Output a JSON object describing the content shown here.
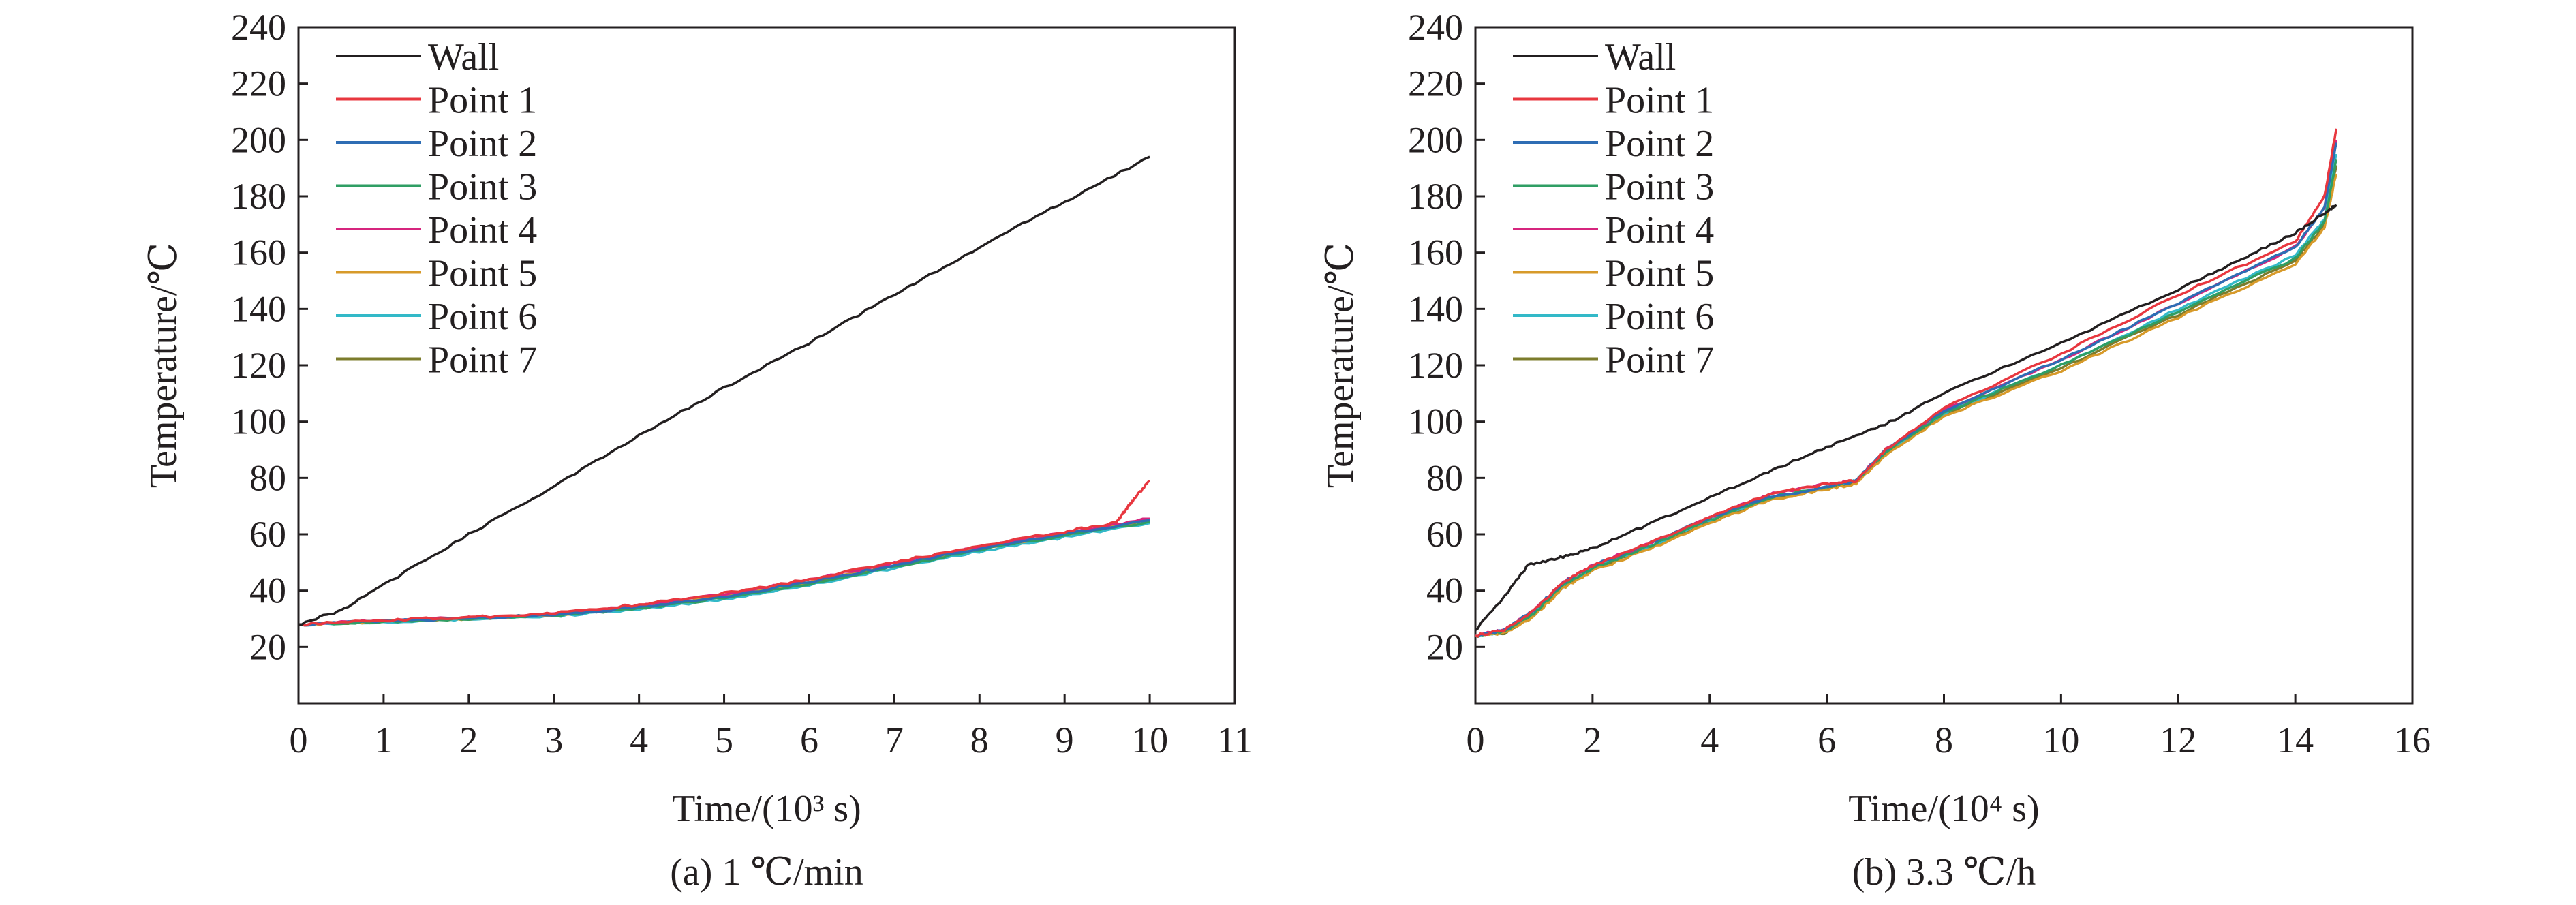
{
  "figure": {
    "legend_entries": [
      "Wall",
      "Point 1",
      "Point 2",
      "Point 3",
      "Point 4",
      "Point 5",
      "Point 6",
      "Point 7"
    ],
    "colors": {
      "Wall": "#231f20",
      "Point 1": "#e8373f",
      "Point 2": "#2e6db4",
      "Point 3": "#2f9e64",
      "Point 4": "#d6257e",
      "Point 5": "#d79a2a",
      "Point 6": "#33b9c8",
      "Point 7": "#7c7c2c"
    }
  },
  "chart_data": [
    {
      "type": "line",
      "caption": "(a) 1 ℃/min",
      "xlabel": "Time/(10³ s)",
      "ylabel": "Temperature/℃",
      "xlim": [
        0,
        11
      ],
      "ylim": [
        0,
        240
      ],
      "x_ticks": [
        "0",
        "1",
        "2",
        "3",
        "4",
        "5",
        "6",
        "7",
        "8",
        "9",
        "10",
        "11"
      ],
      "y_ticks": [
        "20",
        "40",
        "60",
        "80",
        "100",
        "120",
        "140",
        "160",
        "180",
        "200",
        "220",
        "240"
      ],
      "grid": false,
      "legend_position": "top-left",
      "series": [
        {
          "name": "Wall",
          "x": [
            0,
            0.5,
            1,
            2,
            3,
            4,
            5,
            6,
            7,
            8,
            9,
            10
          ],
          "y": [
            28,
            33,
            42,
            60,
            77,
            95,
            112,
            128,
            145,
            162,
            178,
            194
          ]
        },
        {
          "name": "Point 1",
          "x": [
            0,
            1,
            2,
            3,
            4,
            5,
            6,
            7,
            8,
            9,
            9.6,
            9.7,
            9.8,
            10
          ],
          "y": [
            28,
            29.5,
            30.5,
            32,
            35,
            39,
            44,
            50,
            56,
            61,
            64,
            68,
            72,
            79
          ]
        },
        {
          "name": "Point 2",
          "x": [
            0,
            1,
            2,
            3,
            4,
            5,
            6,
            7,
            8,
            9,
            10
          ],
          "y": [
            28,
            29.2,
            30.2,
            31.5,
            34,
            38,
            43,
            49,
            55,
            60,
            65
          ]
        },
        {
          "name": "Point 3",
          "x": [
            0,
            1,
            2,
            3,
            4,
            5,
            6,
            7,
            8,
            9,
            10
          ],
          "y": [
            28,
            29,
            30,
            31.2,
            33.5,
            37.5,
            42.5,
            48.5,
            54.5,
            59.5,
            64.5
          ]
        },
        {
          "name": "Point 4",
          "x": [
            0,
            1,
            2,
            3,
            4,
            5,
            6,
            7,
            8,
            9,
            10
          ],
          "y": [
            28,
            29.4,
            30.4,
            31.8,
            34.6,
            38.6,
            43.8,
            49.8,
            55.6,
            60.6,
            65.5
          ]
        },
        {
          "name": "Point 5",
          "x": [
            0,
            1,
            2,
            3,
            4,
            5,
            6,
            7,
            8,
            9,
            10
          ],
          "y": [
            28,
            29.1,
            30.1,
            31.4,
            34,
            38,
            43,
            49,
            55,
            60,
            65
          ]
        },
        {
          "name": "Point 6",
          "x": [
            0,
            1,
            2,
            3,
            4,
            5,
            6,
            7,
            8,
            9,
            10
          ],
          "y": [
            28,
            29,
            29.9,
            31,
            33.2,
            37,
            42,
            48,
            54,
            59,
            64
          ]
        },
        {
          "name": "Point 7",
          "x": [
            0,
            1,
            2,
            3,
            4,
            5,
            6,
            7,
            8,
            9,
            10
          ],
          "y": [
            28,
            29.1,
            30,
            31.3,
            33.8,
            37.8,
            42.8,
            48.8,
            54.8,
            59.8,
            65
          ]
        }
      ]
    },
    {
      "type": "line",
      "caption": "(b) 3.3 ℃/h",
      "xlabel": "Time/(10⁴ s)",
      "ylabel": "Temperature/℃",
      "xlim": [
        0,
        16
      ],
      "ylim": [
        0,
        240
      ],
      "x_ticks": [
        "0",
        "2",
        "4",
        "6",
        "8",
        "10",
        "12",
        "14",
        "16"
      ],
      "y_ticks": [
        "20",
        "40",
        "60",
        "80",
        "100",
        "120",
        "140",
        "160",
        "180",
        "200",
        "220",
        "240"
      ],
      "grid": false,
      "legend_position": "top-left",
      "series": [
        {
          "name": "Wall",
          "x": [
            0,
            0.5,
            0.9,
            1.5,
            2,
            3,
            4,
            5,
            6,
            7,
            8,
            10,
            12,
            13,
            14,
            14.5,
            14.7
          ],
          "y": [
            26,
            38,
            49,
            52,
            55,
            64,
            73,
            82,
            91,
            99,
            110,
            128,
            147,
            157,
            167,
            174,
            177
          ]
        },
        {
          "name": "Point 1",
          "x": [
            0,
            0.5,
            1,
            1.5,
            2,
            3,
            4,
            5,
            6,
            6.5,
            7,
            8,
            10,
            12,
            14,
            14.5,
            14.7
          ],
          "y": [
            24,
            26,
            33,
            43,
            49,
            57,
            66,
            74,
            78,
            79,
            90,
            105,
            124,
            145,
            164,
            180,
            204
          ]
        },
        {
          "name": "Point 2",
          "x": [
            0,
            0.5,
            1,
            1.5,
            2,
            3,
            4,
            5,
            6,
            6.5,
            7,
            8,
            10,
            12,
            14,
            14.5,
            14.7
          ],
          "y": [
            24,
            26,
            33,
            43,
            49,
            57,
            66,
            73,
            77,
            79,
            90,
            104,
            122,
            142,
            162,
            176,
            199
          ]
        },
        {
          "name": "Point 3",
          "x": [
            0,
            0.5,
            1,
            1.5,
            2,
            3,
            4,
            5,
            6,
            6.5,
            7,
            8,
            10,
            12,
            14,
            14.5,
            14.7
          ],
          "y": [
            24,
            25.5,
            32,
            42,
            48,
            56,
            65,
            73,
            77,
            79,
            89,
            103,
            120,
            139,
            158,
            171,
            193
          ]
        },
        {
          "name": "Point 4",
          "x": [
            0,
            0.5,
            1,
            1.5,
            2,
            3,
            4,
            5,
            6,
            6.5,
            7,
            8,
            10,
            12,
            14,
            14.5,
            14.7
          ],
          "y": [
            24,
            26,
            33,
            43,
            49,
            57,
            66,
            74,
            78,
            79,
            90,
            104,
            122,
            142,
            162,
            176,
            200
          ]
        },
        {
          "name": "Point 5",
          "x": [
            0,
            0.5,
            1,
            1.5,
            2,
            3,
            4,
            5,
            6,
            6.5,
            7,
            8,
            10,
            12,
            14,
            14.5,
            14.7
          ],
          "y": [
            24,
            25,
            31,
            41,
            47,
            55,
            64,
            72,
            76,
            78,
            88,
            102,
            118,
            137,
            156,
            169,
            188
          ]
        },
        {
          "name": "Point 6",
          "x": [
            0,
            0.5,
            1,
            1.5,
            2,
            3,
            4,
            5,
            6,
            6.5,
            7,
            8,
            10,
            12,
            14,
            14.5,
            14.7
          ],
          "y": [
            24,
            25.5,
            32,
            42,
            48,
            56,
            65,
            73,
            77,
            79,
            89,
            103,
            120,
            140,
            159,
            172,
            195
          ]
        },
        {
          "name": "Point 7",
          "x": [
            0,
            0.5,
            1,
            1.5,
            2,
            3,
            4,
            5,
            6,
            6.5,
            7,
            8,
            10,
            12,
            14,
            14.5,
            14.7
          ],
          "y": [
            24,
            25,
            31.5,
            41.5,
            47.5,
            55.5,
            64.5,
            72.5,
            76.5,
            78.5,
            88.5,
            102.5,
            119,
            138,
            157,
            170,
            191
          ]
        }
      ]
    }
  ]
}
